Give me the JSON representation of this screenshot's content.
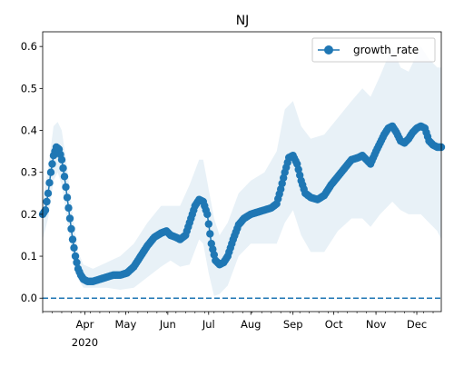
{
  "chart_data": {
    "type": "line",
    "title": "NJ",
    "xlabel": "",
    "ylabel": "",
    "x_range": [
      "2020-03-01",
      "2020-12-19"
    ],
    "ylim": [
      -0.032,
      0.635
    ],
    "y_ticks": [
      0.0,
      0.1,
      0.2,
      0.3,
      0.4,
      0.5,
      0.6
    ],
    "y_tick_labels": [
      "0.0",
      "0.1",
      "0.2",
      "0.3",
      "0.4",
      "0.5",
      "0.6"
    ],
    "x_ticks": [
      "2020-04-01",
      "2020-05-01",
      "2020-06-01",
      "2020-07-01",
      "2020-08-01",
      "2020-09-01",
      "2020-10-01",
      "2020-11-01",
      "2020-12-01"
    ],
    "x_tick_labels": [
      "Apr",
      "May",
      "Jun",
      "Jul",
      "Aug",
      "Sep",
      "Oct",
      "Nov",
      "Dec"
    ],
    "x_year_label": "2020",
    "grid": false,
    "legend": {
      "position": "top-right",
      "entries": [
        "growth_rate"
      ]
    },
    "reference_line": {
      "y": 0.0,
      "style": "dashed"
    },
    "colors": {
      "line": "#1f77b4",
      "band": "#1f77b4",
      "band_opacity": 0.1
    },
    "series": [
      {
        "name": "growth_rate",
        "marker": "circle",
        "points": [
          [
            "2020-03-01",
            0.2
          ],
          [
            "2020-03-03",
            0.21
          ],
          [
            "2020-03-05",
            0.25
          ],
          [
            "2020-03-07",
            0.3
          ],
          [
            "2020-03-09",
            0.34
          ],
          [
            "2020-03-11",
            0.36
          ],
          [
            "2020-03-13",
            0.355
          ],
          [
            "2020-03-15",
            0.33
          ],
          [
            "2020-03-17",
            0.29
          ],
          [
            "2020-03-19",
            0.24
          ],
          [
            "2020-03-21",
            0.19
          ],
          [
            "2020-03-23",
            0.14
          ],
          [
            "2020-03-25",
            0.1
          ],
          [
            "2020-03-27",
            0.07
          ],
          [
            "2020-03-29",
            0.055
          ],
          [
            "2020-03-31",
            0.045
          ],
          [
            "2020-04-03",
            0.04
          ],
          [
            "2020-04-07",
            0.04
          ],
          [
            "2020-04-12",
            0.045
          ],
          [
            "2020-04-17",
            0.05
          ],
          [
            "2020-04-22",
            0.055
          ],
          [
            "2020-04-27",
            0.055
          ],
          [
            "2020-05-02",
            0.06
          ],
          [
            "2020-05-07",
            0.075
          ],
          [
            "2020-05-12",
            0.1
          ],
          [
            "2020-05-17",
            0.125
          ],
          [
            "2020-05-22",
            0.145
          ],
          [
            "2020-05-27",
            0.155
          ],
          [
            "2020-05-31",
            0.16
          ],
          [
            "2020-06-03",
            0.15
          ],
          [
            "2020-06-07",
            0.145
          ],
          [
            "2020-06-10",
            0.14
          ],
          [
            "2020-06-14",
            0.15
          ],
          [
            "2020-06-17",
            0.18
          ],
          [
            "2020-06-21",
            0.22
          ],
          [
            "2020-06-24",
            0.235
          ],
          [
            "2020-06-27",
            0.23
          ],
          [
            "2020-06-30",
            0.2
          ],
          [
            "2020-07-03",
            0.13
          ],
          [
            "2020-07-06",
            0.09
          ],
          [
            "2020-07-09",
            0.08
          ],
          [
            "2020-07-12",
            0.085
          ],
          [
            "2020-07-15",
            0.1
          ],
          [
            "2020-07-19",
            0.14
          ],
          [
            "2020-07-23",
            0.175
          ],
          [
            "2020-07-27",
            0.19
          ],
          [
            "2020-08-01",
            0.2
          ],
          [
            "2020-08-06",
            0.205
          ],
          [
            "2020-08-11",
            0.21
          ],
          [
            "2020-08-16",
            0.215
          ],
          [
            "2020-08-20",
            0.225
          ],
          [
            "2020-08-23",
            0.26
          ],
          [
            "2020-08-26",
            0.3
          ],
          [
            "2020-08-29",
            0.335
          ],
          [
            "2020-09-01",
            0.34
          ],
          [
            "2020-09-04",
            0.32
          ],
          [
            "2020-09-07",
            0.28
          ],
          [
            "2020-09-10",
            0.25
          ],
          [
            "2020-09-14",
            0.24
          ],
          [
            "2020-09-19",
            0.235
          ],
          [
            "2020-09-24",
            0.245
          ],
          [
            "2020-09-29",
            0.27
          ],
          [
            "2020-10-04",
            0.29
          ],
          [
            "2020-10-09",
            0.31
          ],
          [
            "2020-10-14",
            0.33
          ],
          [
            "2020-10-19",
            0.335
          ],
          [
            "2020-10-22",
            0.34
          ],
          [
            "2020-10-25",
            0.33
          ],
          [
            "2020-10-28",
            0.32
          ],
          [
            "2020-11-01",
            0.35
          ],
          [
            "2020-11-04",
            0.37
          ],
          [
            "2020-11-07",
            0.39
          ],
          [
            "2020-11-10",
            0.405
          ],
          [
            "2020-11-13",
            0.41
          ],
          [
            "2020-11-16",
            0.395
          ],
          [
            "2020-11-19",
            0.375
          ],
          [
            "2020-11-22",
            0.37
          ],
          [
            "2020-11-25",
            0.38
          ],
          [
            "2020-11-28",
            0.395
          ],
          [
            "2020-12-01",
            0.405
          ],
          [
            "2020-12-04",
            0.41
          ],
          [
            "2020-12-07",
            0.405
          ],
          [
            "2020-12-10",
            0.375
          ],
          [
            "2020-12-13",
            0.365
          ],
          [
            "2020-12-16",
            0.36
          ],
          [
            "2020-12-19",
            0.36
          ]
        ],
        "band": [
          [
            "2020-03-01",
            0.14,
            0.23
          ],
          [
            "2020-03-05",
            0.19,
            0.31
          ],
          [
            "2020-03-09",
            0.28,
            0.41
          ],
          [
            "2020-03-12",
            0.3,
            0.42
          ],
          [
            "2020-03-15",
            0.27,
            0.4
          ],
          [
            "2020-03-19",
            0.18,
            0.31
          ],
          [
            "2020-03-23",
            0.1,
            0.2
          ],
          [
            "2020-03-27",
            0.045,
            0.11
          ],
          [
            "2020-03-31",
            0.025,
            0.08
          ],
          [
            "2020-04-07",
            0.025,
            0.07
          ],
          [
            "2020-04-17",
            0.025,
            0.085
          ],
          [
            "2020-04-27",
            0.02,
            0.1
          ],
          [
            "2020-05-07",
            0.025,
            0.13
          ],
          [
            "2020-05-17",
            0.05,
            0.18
          ],
          [
            "2020-05-27",
            0.075,
            0.22
          ],
          [
            "2020-06-03",
            0.09,
            0.22
          ],
          [
            "2020-06-10",
            0.075,
            0.22
          ],
          [
            "2020-06-17",
            0.08,
            0.27
          ],
          [
            "2020-06-24",
            0.14,
            0.33
          ],
          [
            "2020-06-27",
            0.13,
            0.33
          ],
          [
            "2020-07-01",
            0.06,
            0.26
          ],
          [
            "2020-07-05",
            0.005,
            0.19
          ],
          [
            "2020-07-09",
            0.01,
            0.15
          ],
          [
            "2020-07-15",
            0.03,
            0.18
          ],
          [
            "2020-07-23",
            0.1,
            0.25
          ],
          [
            "2020-08-01",
            0.13,
            0.28
          ],
          [
            "2020-08-11",
            0.13,
            0.3
          ],
          [
            "2020-08-20",
            0.13,
            0.35
          ],
          [
            "2020-08-26",
            0.18,
            0.45
          ],
          [
            "2020-09-01",
            0.21,
            0.47
          ],
          [
            "2020-09-07",
            0.15,
            0.41
          ],
          [
            "2020-09-14",
            0.11,
            0.38
          ],
          [
            "2020-09-24",
            0.11,
            0.39
          ],
          [
            "2020-10-04",
            0.16,
            0.43
          ],
          [
            "2020-10-14",
            0.19,
            0.47
          ],
          [
            "2020-10-22",
            0.19,
            0.5
          ],
          [
            "2020-10-28",
            0.17,
            0.48
          ],
          [
            "2020-11-04",
            0.2,
            0.53
          ],
          [
            "2020-11-13",
            0.23,
            0.6
          ],
          [
            "2020-11-19",
            0.21,
            0.55
          ],
          [
            "2020-11-25",
            0.2,
            0.54
          ],
          [
            "2020-12-04",
            0.2,
            0.6
          ],
          [
            "2020-12-10",
            0.18,
            0.57
          ],
          [
            "2020-12-16",
            0.16,
            0.55
          ],
          [
            "2020-12-19",
            0.14,
            0.55
          ]
        ]
      }
    ]
  }
}
